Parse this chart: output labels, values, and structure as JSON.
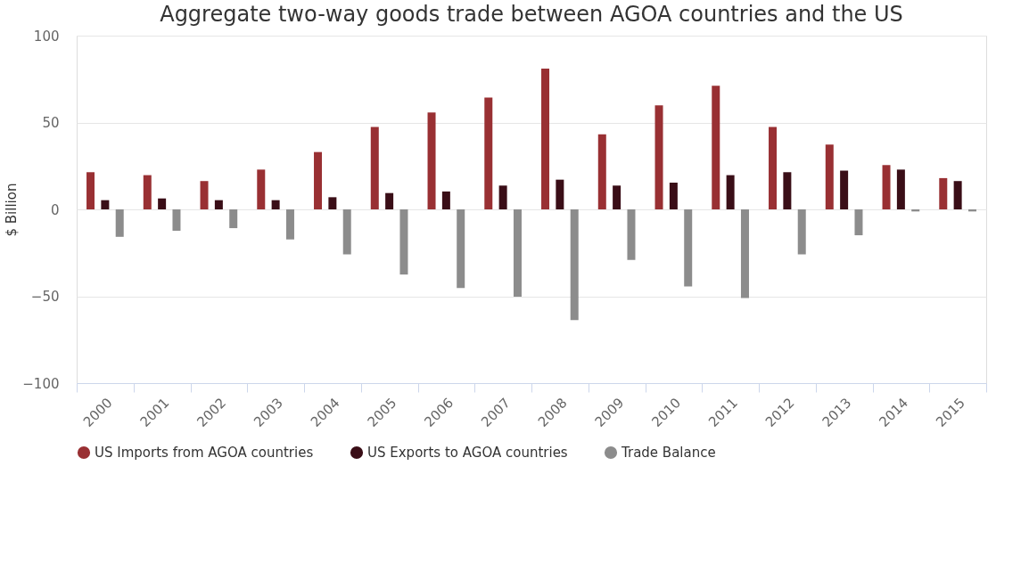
{
  "chart_data": {
    "type": "bar",
    "title": "Aggregate two-way goods trade between AGOA countries and the US",
    "ylabel": "$ Billion",
    "categories": [
      "2000",
      "2001",
      "2002",
      "2003",
      "2004",
      "2005",
      "2006",
      "2007",
      "2008",
      "2009",
      "2010",
      "2011",
      "2012",
      "2013",
      "2014",
      "2015"
    ],
    "series": [
      {
        "name": "US Imports from AGOA countries",
        "color": "#993033",
        "values": [
          21.4,
          19.7,
          16.3,
          22.9,
          33.0,
          47.4,
          55.8,
          64.4,
          81.0,
          43.2,
          59.9,
          71.1,
          47.4,
          37.3,
          25.5,
          18.0
        ]
      },
      {
        "name": "US Exports to AGOA countries",
        "color": "#3a0e17",
        "values": [
          5.3,
          6.3,
          5.3,
          5.3,
          7.0,
          9.4,
          10.3,
          13.7,
          17.1,
          13.7,
          15.4,
          19.7,
          21.4,
          22.3,
          22.9,
          16.3
        ]
      },
      {
        "name": "Trade Balance",
        "color": "#8c8c8c",
        "values": [
          -15.8,
          -12.3,
          -10.8,
          -17.3,
          -25.9,
          -37.5,
          -45.2,
          -50.2,
          -63.7,
          -29.1,
          -44.3,
          -51.0,
          -25.9,
          -14.9,
          -1.2,
          -1.2
        ]
      }
    ],
    "ylim": [
      -100,
      100
    ],
    "yticks": [
      -100,
      -50,
      0,
      50,
      100
    ],
    "grid": "y",
    "legend": "bottom"
  }
}
